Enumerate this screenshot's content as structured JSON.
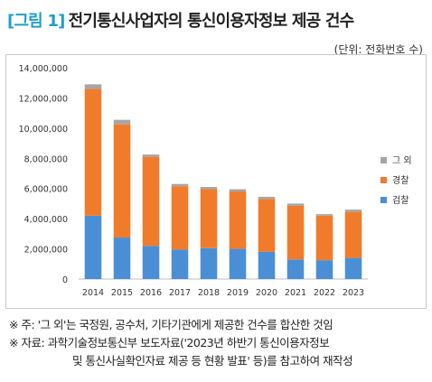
{
  "header": {
    "prefix": "[그림 1]",
    "title": "전기통신사업자의 통신이용자정보 제공 건수",
    "unit": "(단위: 전화번호 수)"
  },
  "chart_data": {
    "type": "bar",
    "stacked": true,
    "categories": [
      "2014",
      "2015",
      "2016",
      "2017",
      "2018",
      "2019",
      "2020",
      "2021",
      "2022",
      "2023"
    ],
    "series": [
      {
        "name": "검찰",
        "color": "#4a8fd6",
        "values": [
          4200000,
          2750000,
          2200000,
          1950000,
          2050000,
          2000000,
          1800000,
          1300000,
          1250000,
          1400000
        ]
      },
      {
        "name": "경찰",
        "color": "#f07b2a",
        "values": [
          8400000,
          7500000,
          5900000,
          4200000,
          3900000,
          3800000,
          3500000,
          3550000,
          2950000,
          3050000
        ]
      },
      {
        "name": "그 외",
        "color": "#a6a6a6",
        "values": [
          300000,
          300000,
          150000,
          150000,
          150000,
          150000,
          150000,
          150000,
          100000,
          150000
        ]
      }
    ],
    "ylim": [
      0,
      14000000
    ],
    "yticks": [
      "0",
      "2,000,000",
      "4,000,000",
      "6,000,000",
      "8,000,000",
      "10,000,000",
      "12,000,000",
      "14,000,000"
    ],
    "legend_position": "right",
    "grid": false
  },
  "notes": [
    "※ 주:  '그 외'는 국정원, 공수처, 기타기관에게 제공한 건수를 합산한 것임",
    "※ 자료:  과학기술정보통신부 보도자료('2023년 하반기 통신이용자정보",
    "및 통신사실확인자료 제공 등 현황 발표' 등)를 참고하여 재작성"
  ]
}
